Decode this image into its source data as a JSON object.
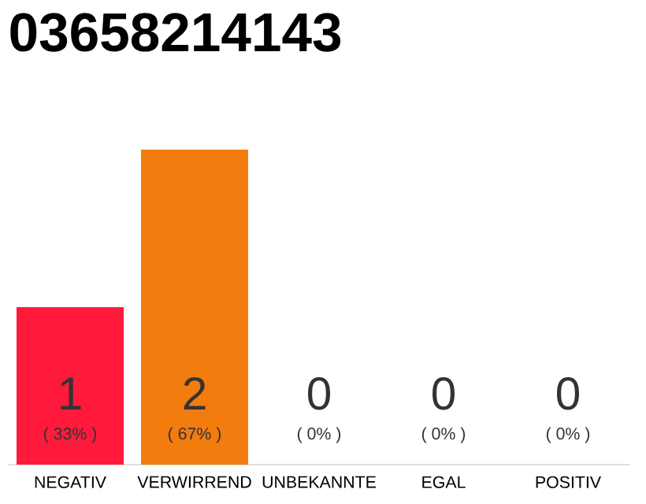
{
  "chart_data": {
    "type": "bar",
    "title": "03658214143",
    "categories": [
      "NEGATIV",
      "VERWIRREND",
      "UNBEKANNTE",
      "EGAL",
      "POSITIV"
    ],
    "values": [
      1,
      2,
      0,
      0,
      0
    ],
    "colors": [
      "#ff1a3c",
      "#f27c0e",
      "#c8c8c8",
      "#c8c8c8",
      "#c8c8c8"
    ],
    "value_labels": [
      "1",
      "2",
      "0",
      "0",
      "0"
    ],
    "annotations": [
      "( 33% )",
      "( 67% )",
      "( 0% )",
      "( 0% )",
      "( 0% )"
    ],
    "tick_labels": "x"
  }
}
